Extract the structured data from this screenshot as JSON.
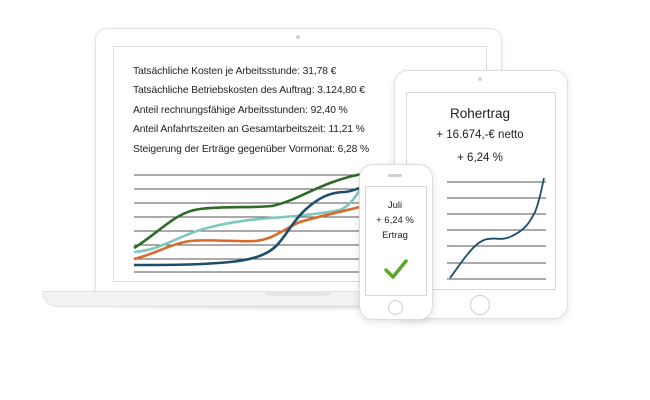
{
  "laptop": {
    "stats": [
      "Tatsächliche Kosten je Arbeitsstunde: 31,78 €",
      "Tatsächliche Betriebskosten des Auftrag: 3.124,80 €",
      "Anteil rechnungsfähige Arbeitsstunden: 92,40 %",
      "Anteil Anfahrtszeiten an Gesamtarbeitszeit: 11,21 %",
      "Steigerung der Erträge gegenüber Vormonat: 6,28 %"
    ],
    "series_colors": [
      "#2f6b28",
      "#7ec8bf",
      "#d96a2b",
      "#1d4f6b"
    ]
  },
  "tablet": {
    "title": "Rohertrag",
    "line2": "+ 16.674,-€ netto",
    "line3": "+  6,24 %",
    "line_color": "#1d4f6b"
  },
  "phone": {
    "month": "Juli",
    "value": "+ 6,24 %",
    "label": "Ertrag",
    "check_color": "#5aa52b"
  },
  "icons": {
    "check": "check-icon"
  }
}
